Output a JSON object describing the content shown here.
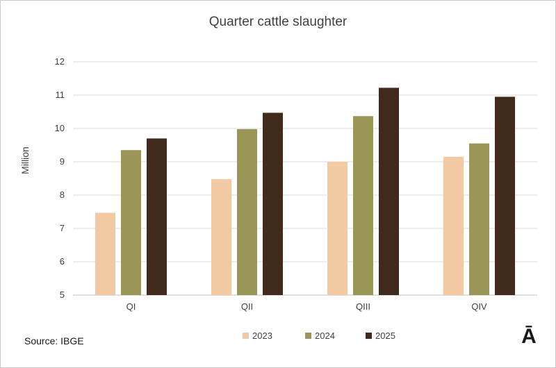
{
  "chart_data": {
    "type": "bar",
    "title": "Quarter cattle slaughter",
    "ylabel": "Million",
    "xlabel": "",
    "categories": [
      "QI",
      "QII",
      "QIII",
      "QIV"
    ],
    "ylim": [
      5,
      12
    ],
    "yticks": [
      5,
      6,
      7,
      8,
      9,
      10,
      11,
      12
    ],
    "grid": true,
    "legend_position": "bottom",
    "series": [
      {
        "name": "2023",
        "color": "#f2c9a3",
        "values": [
          7.47,
          8.48,
          9.0,
          9.15
        ]
      },
      {
        "name": "2024",
        "color": "#9a9658",
        "values": [
          9.35,
          9.98,
          10.37,
          9.55
        ]
      },
      {
        "name": "2025",
        "color": "#41291b",
        "values": [
          9.7,
          10.47,
          11.22,
          10.95
        ]
      }
    ]
  },
  "footer": {
    "source": "Source: IBGE",
    "logo": "Ā"
  }
}
